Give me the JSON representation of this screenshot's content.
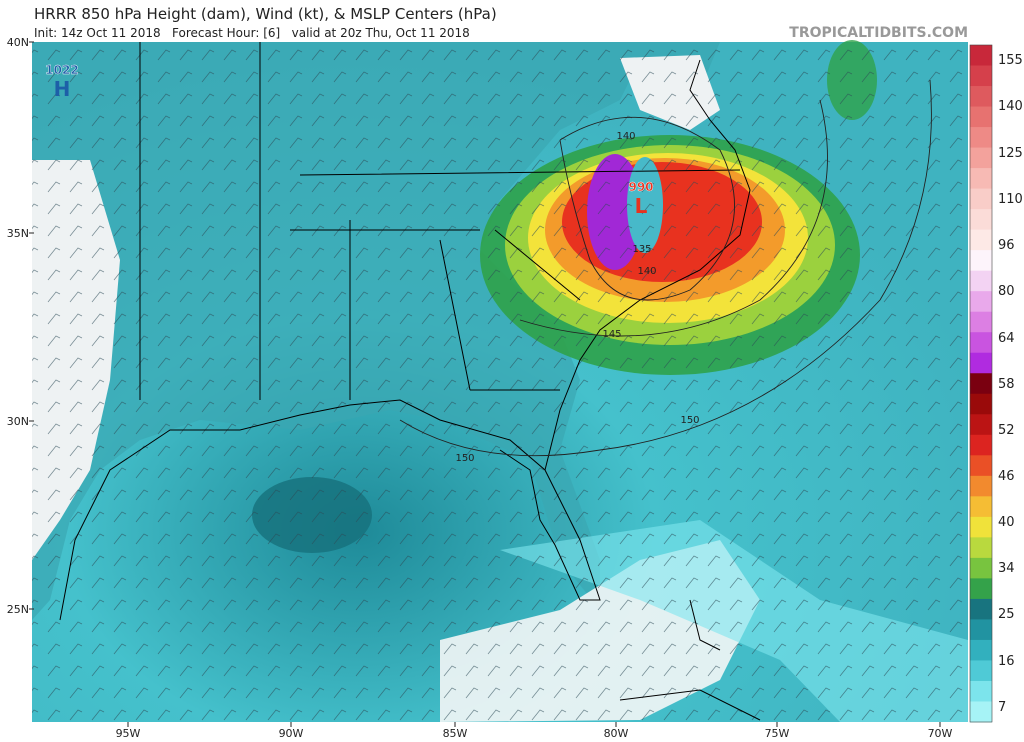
{
  "header": {
    "title": "HRRR 850 hPa Height (dam), Wind (kt), & MSLP Centers (hPa)",
    "subtitle": "Init: 14z Oct 11 2018   Forecast Hour: [6]   valid at 20z Thu, Oct 11 2018",
    "source": "TROPICALTIDBITS.COM"
  },
  "map": {
    "latitude_labels": [
      "40N",
      "35N",
      "30N",
      "25N"
    ],
    "longitude_labels": [
      "95W",
      "90W",
      "85W",
      "80W",
      "75W",
      "70W"
    ],
    "pressure_centers": [
      {
        "value": "1022",
        "symbol": "H"
      },
      {
        "value": "990",
        "symbol": "L"
      }
    ],
    "contour_labels": [
      "140",
      "135",
      "140",
      "145",
      "150",
      "150"
    ]
  },
  "colorbar": {
    "labels": [
      "155",
      "140",
      "125",
      "110",
      "96",
      "80",
      "64",
      "58",
      "52",
      "46",
      "40",
      "34",
      "25",
      "16",
      "7"
    ]
  }
}
